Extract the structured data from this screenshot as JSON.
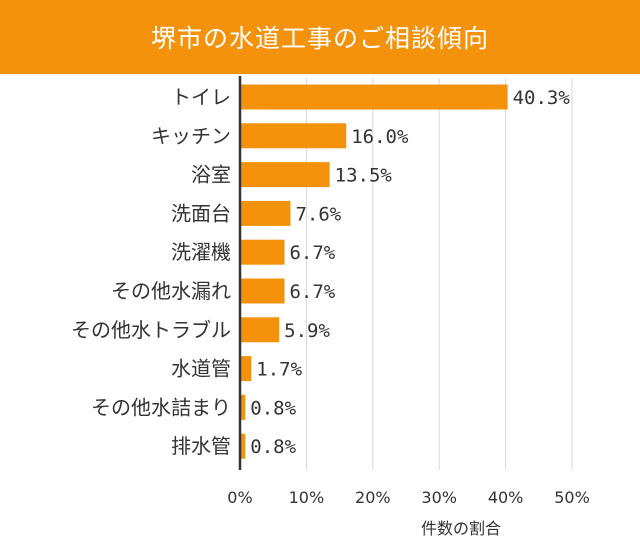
{
  "chart_data": {
    "type": "bar",
    "orientation": "horizontal",
    "title": "堺市の水道工事のご相談傾向",
    "xlabel": "件数の割合",
    "ylabel": "",
    "xlim": [
      0,
      50
    ],
    "xticks": [
      "0%",
      "10%",
      "20%",
      "30%",
      "40%",
      "50%"
    ],
    "grid": true,
    "categories": [
      "トイレ",
      "キッチン",
      "浴室",
      "洗面台",
      "洗濯機",
      "その他水漏れ",
      "その他水トラブル",
      "水道管",
      "その他水詰まり",
      "排水管"
    ],
    "values": [
      40.3,
      16.0,
      13.5,
      7.6,
      6.7,
      6.7,
      5.9,
      1.7,
      0.8,
      0.8
    ],
    "value_labels": [
      "40.3%",
      "16.0%",
      "13.5%",
      "7.6%",
      "6.7%",
      "6.7%",
      "5.9%",
      "1.7%",
      "0.8%",
      "0.8%"
    ],
    "colors": {
      "bar": "#f5920c",
      "title_bg": "#f5920c",
      "grid": "#d9d9d9",
      "axis": "#333333"
    }
  }
}
